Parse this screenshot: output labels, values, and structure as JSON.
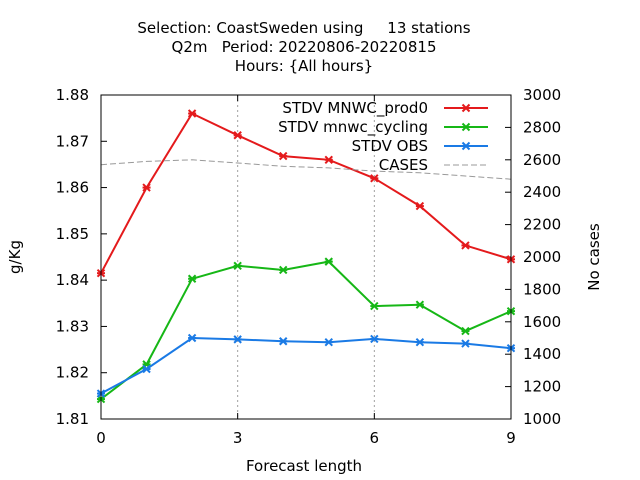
{
  "chart_data": {
    "type": "line",
    "title_lines": [
      "Selection: CoastSweden using     13 stations",
      "Q2m   Period: 20220806-20220815",
      "Hours: {All hours}"
    ],
    "xlabel": "Forecast length",
    "ylabel": "g/Kg",
    "y2label": "No cases",
    "xlim": [
      0,
      9
    ],
    "ylim": [
      1.81,
      1.88
    ],
    "y2lim": [
      1000,
      3000
    ],
    "x_ticks": [
      "0",
      "3",
      "6",
      "9"
    ],
    "y_ticks": [
      "1.81",
      "1.82",
      "1.83",
      "1.84",
      "1.85",
      "1.86",
      "1.87",
      "1.88"
    ],
    "y2_ticks": [
      "1000",
      "1200",
      "1400",
      "1600",
      "1800",
      "2000",
      "2200",
      "2400",
      "2600",
      "2800",
      "3000"
    ],
    "grid": true,
    "legend_position": "top-right",
    "x": [
      0,
      1,
      2,
      3,
      4,
      5,
      6,
      7,
      8,
      9
    ],
    "series": [
      {
        "name": "STDV MNWC_prod0",
        "color": "#e41a1c",
        "axis": "y1",
        "style": "line-markers",
        "values": [
          1.8415,
          1.86,
          1.876,
          1.8713,
          1.8668,
          1.866,
          1.862,
          1.856,
          1.8475,
          1.8445
        ]
      },
      {
        "name": "STDV mnwc_cycling",
        "color": "#16b716",
        "axis": "y1",
        "style": "line-markers",
        "values": [
          1.8143,
          1.8218,
          1.8403,
          1.8431,
          1.8422,
          1.844,
          1.8344,
          1.8347,
          1.829,
          1.8333
        ]
      },
      {
        "name": "STDV OBS",
        "color": "#1a7ae5",
        "axis": "y1",
        "style": "line-markers",
        "values": [
          1.8155,
          1.8208,
          1.8275,
          1.8272,
          1.8268,
          1.8266,
          1.8273,
          1.8266,
          1.8263,
          1.8253
        ]
      },
      {
        "name": "CASES",
        "color": "#999999",
        "axis": "y2",
        "style": "dashed",
        "values": [
          2570,
          2590,
          2600,
          2580,
          2560,
          2550,
          2530,
          2520,
          2500,
          2480
        ]
      }
    ]
  }
}
